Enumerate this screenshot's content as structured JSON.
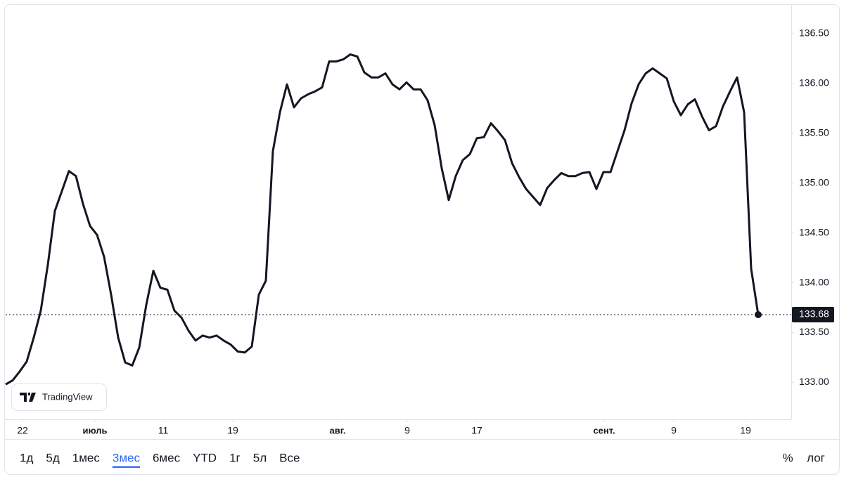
{
  "chart_data": {
    "type": "line",
    "brand": "TradingView",
    "series": [
      {
        "color": "#131722",
        "values": [
          132.98,
          133.02,
          133.11,
          133.21,
          133.45,
          133.72,
          134.18,
          134.72,
          134.92,
          135.12,
          135.07,
          134.79,
          134.57,
          134.48,
          134.26,
          133.88,
          133.45,
          133.2,
          133.17,
          133.35,
          133.78,
          134.12,
          133.95,
          133.93,
          133.72,
          133.65,
          133.52,
          133.42,
          133.47,
          133.45,
          133.47,
          133.42,
          133.38,
          133.31,
          133.3,
          133.36,
          133.88,
          134.02,
          135.32,
          135.71,
          135.99,
          135.76,
          135.85,
          135.89,
          135.92,
          135.96,
          136.22,
          136.22,
          136.24,
          136.29,
          136.27,
          136.11,
          136.06,
          136.06,
          136.1,
          135.99,
          135.94,
          136.01,
          135.94,
          135.94,
          135.83,
          135.58,
          135.15,
          134.83,
          135.07,
          135.23,
          135.29,
          135.45,
          135.46,
          135.6,
          135.52,
          135.43,
          135.2,
          135.06,
          134.94,
          134.86,
          134.78,
          134.95,
          135.03,
          135.1,
          135.07,
          135.07,
          135.1,
          135.11,
          134.94,
          135.11,
          135.11,
          135.32,
          135.53,
          135.8,
          135.99,
          136.1,
          136.15,
          136.1,
          136.05,
          135.82,
          135.68,
          135.79,
          135.84,
          135.67,
          135.53,
          135.57,
          135.77,
          135.92,
          136.06,
          135.71,
          134.14,
          133.68
        ]
      }
    ],
    "xlim": [
      0,
      111.7
    ],
    "xticks": [
      {
        "value": 2.4,
        "label": "22"
      },
      {
        "value": 12.7,
        "label": "июль"
      },
      {
        "value": 22.4,
        "label": "11"
      },
      {
        "value": 32.3,
        "label": "19"
      },
      {
        "value": 47.2,
        "label": "авг."
      },
      {
        "value": 57.1,
        "label": "9"
      },
      {
        "value": 67,
        "label": "17"
      },
      {
        "value": 85.1,
        "label": "сент."
      },
      {
        "value": 95,
        "label": "9"
      },
      {
        "value": 105.2,
        "label": "19"
      }
    ],
    "ylim": [
      132.63,
      136.78
    ],
    "yticks": [
      {
        "value": 133,
        "label": "133.00"
      },
      {
        "value": 133.5,
        "label": "133.50"
      },
      {
        "value": 134,
        "label": "134.00"
      },
      {
        "value": 134.5,
        "label": "134.50"
      },
      {
        "value": 135,
        "label": "135.00"
      },
      {
        "value": 135.5,
        "label": "135.50"
      },
      {
        "value": 136,
        "label": "136.00"
      },
      {
        "value": 136.5,
        "label": "136.50"
      }
    ],
    "ranges": [
      "1д",
      "5д",
      "1мес",
      "3мес",
      "6мес",
      "YTD",
      "1г",
      "5л",
      "Все"
    ],
    "active_range_index": 3,
    "right_buttons": [
      "%",
      "лог"
    ]
  }
}
